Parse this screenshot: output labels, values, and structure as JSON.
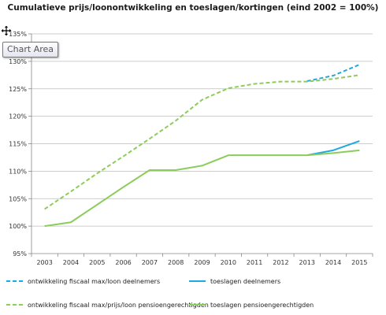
{
  "tooltip": {
    "text": "Chart Area"
  },
  "icons": {
    "cursor": "move-cursor-icon"
  },
  "chart_data": {
    "type": "line",
    "title": "Cumulatieve prijs/loonontwikkeling en toeslagen/kortingen (eind 2002 = 100%)",
    "xlabel": "",
    "ylabel": "",
    "x": [
      "2003",
      "2004",
      "2005",
      "2006",
      "2007",
      "2008",
      "2009",
      "2010",
      "2011",
      "2012",
      "2013",
      "2014",
      "2015"
    ],
    "ylim": [
      95,
      135
    ],
    "yticks": [
      95,
      100,
      105,
      110,
      115,
      120,
      125,
      130,
      135
    ],
    "ytick_labels": [
      "95%",
      "100%",
      "105%",
      "110%",
      "115%",
      "120%",
      "125%",
      "130%",
      "135%"
    ],
    "grid": "horizontal",
    "legend_position": "bottom",
    "series": [
      {
        "name": "ontwikkeling fiscaal max/loon deelnemers",
        "color": "#1fa9e1",
        "dash": "dashed",
        "values": [
          null,
          null,
          null,
          null,
          null,
          null,
          null,
          null,
          null,
          null,
          126.4,
          127.4,
          129.4
        ]
      },
      {
        "name": "toeslagen deelnemers",
        "color": "#1fa9e1",
        "dash": "solid",
        "values": [
          null,
          null,
          null,
          null,
          null,
          null,
          null,
          null,
          null,
          null,
          112.9,
          113.8,
          115.5
        ]
      },
      {
        "name": "ontwikkeling fiscaal max/prijs/loon pensioengerechtigden",
        "color": "#8ccc5a",
        "dash": "dashed",
        "values": [
          103.1,
          106.3,
          109.6,
          112.7,
          115.9,
          119.2,
          123.0,
          125.1,
          125.9,
          126.3,
          126.3,
          126.8,
          127.5
        ]
      },
      {
        "name": "toeslagen pensioengerechtigden",
        "color": "#8ccc5a",
        "dash": "solid",
        "values": [
          100.0,
          100.7,
          103.9,
          107.1,
          110.2,
          110.2,
          111.0,
          112.9,
          112.9,
          112.9,
          112.9,
          113.3,
          113.8
        ]
      }
    ]
  }
}
